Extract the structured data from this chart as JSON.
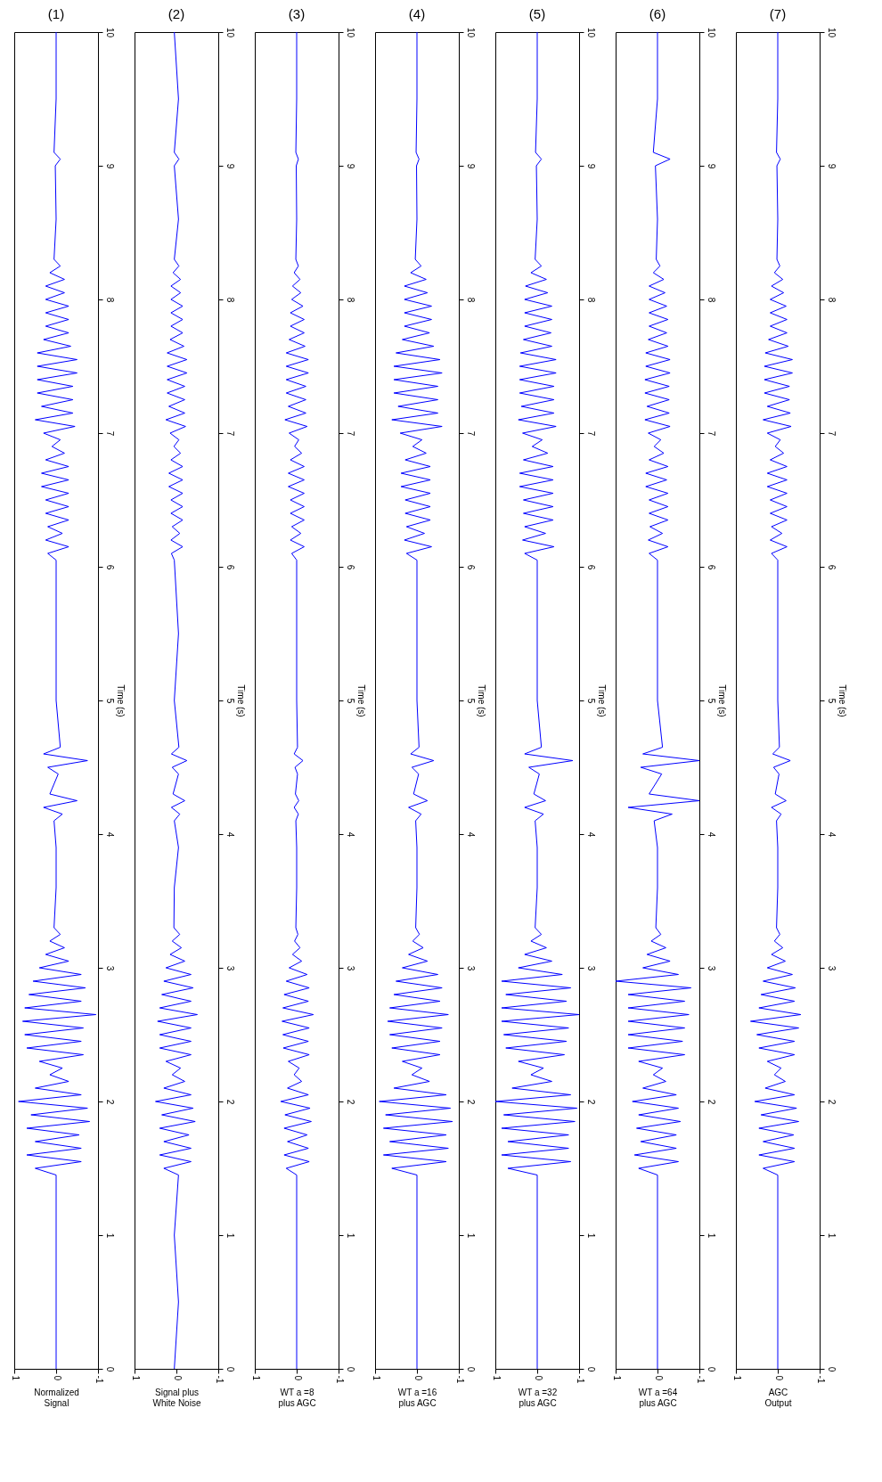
{
  "chart_data": [
    {
      "type": "line",
      "orientation": "horizontal",
      "title": "(1)",
      "ylabel": "Time (s)",
      "xlabel": "Normalized\nSignal",
      "color": "#0000ff",
      "ylim": [
        0,
        10
      ],
      "yticks": [
        0,
        1,
        2,
        3,
        4,
        5,
        6,
        7,
        8,
        9,
        10
      ],
      "xlim": [
        1,
        -1
      ],
      "xticks": [
        1,
        0,
        -1
      ],
      "x": [
        0,
        0.5,
        1,
        1.45,
        1.5,
        1.55,
        1.6,
        1.65,
        1.7,
        1.75,
        1.8,
        1.85,
        1.9,
        1.95,
        2,
        2.05,
        2.1,
        2.15,
        2.2,
        2.25,
        2.3,
        2.35,
        2.4,
        2.45,
        2.5,
        2.55,
        2.6,
        2.65,
        2.7,
        2.75,
        2.8,
        2.85,
        2.9,
        2.95,
        3,
        3.05,
        3.1,
        3.15,
        3.2,
        3.25,
        3.3,
        3.6,
        3.9,
        4.1,
        4.15,
        4.2,
        4.25,
        4.3,
        4.45,
        4.5,
        4.55,
        4.6,
        4.65,
        5,
        5.5,
        6.05,
        6.1,
        6.15,
        6.2,
        6.25,
        6.3,
        6.35,
        6.4,
        6.45,
        6.5,
        6.55,
        6.6,
        6.65,
        6.7,
        6.75,
        6.8,
        6.85,
        6.9,
        6.95,
        7,
        7.05,
        7.1,
        7.15,
        7.2,
        7.25,
        7.3,
        7.35,
        7.4,
        7.45,
        7.5,
        7.55,
        7.6,
        7.65,
        7.7,
        7.75,
        7.8,
        7.85,
        7.9,
        7.95,
        8,
        8.05,
        8.1,
        8.15,
        8.2,
        8.25,
        8.3,
        8.6,
        9,
        9.05,
        9.1,
        9.5,
        10
      ],
      "values": [
        0,
        0,
        0,
        0,
        0.5,
        -0.6,
        0.7,
        -0.6,
        0.5,
        -0.55,
        0.7,
        -0.8,
        0.6,
        -0.75,
        0.9,
        -0.6,
        0.5,
        -0.3,
        0.15,
        -0.15,
        0.4,
        -0.65,
        0.7,
        -0.6,
        0.75,
        -0.65,
        0.8,
        -0.95,
        0.75,
        -0.6,
        0.65,
        -0.7,
        0.55,
        -0.6,
        0.4,
        -0.3,
        0.25,
        -0.2,
        0.15,
        -0.1,
        0.05,
        0,
        0,
        0.05,
        -0.15,
        0.3,
        -0.5,
        0.15,
        -0.05,
        0.2,
        -0.75,
        0.3,
        -0.1,
        0,
        0,
        0,
        0.2,
        -0.3,
        0.25,
        -0.15,
        0.2,
        -0.3,
        0.25,
        -0.3,
        0.25,
        -0.3,
        0.35,
        -0.3,
        0.35,
        -0.3,
        0.25,
        -0.2,
        0.1,
        -0.1,
        0.3,
        -0.45,
        0.5,
        -0.4,
        0.35,
        -0.4,
        0.45,
        -0.4,
        0.45,
        -0.5,
        0.45,
        -0.5,
        0.45,
        -0.35,
        0.3,
        -0.3,
        0.25,
        -0.3,
        0.25,
        -0.3,
        0.25,
        -0.2,
        0.25,
        -0.2,
        0.15,
        -0.1,
        0.05,
        0,
        0.02,
        -0.1,
        0.05,
        0,
        0
      ]
    },
    {
      "type": "line",
      "orientation": "horizontal",
      "title": "(2)",
      "ylabel": "Time (s)",
      "xlabel": "Signal plus\nWhite Noise",
      "color": "#0000ff",
      "ylim": [
        0,
        10
      ],
      "yticks": [
        0,
        1,
        2,
        3,
        4,
        5,
        6,
        7,
        8,
        9,
        10
      ],
      "xlim": [
        1,
        -1
      ],
      "xticks": [
        1,
        0,
        -1
      ],
      "x": [
        0,
        0.5,
        1,
        1.45,
        1.5,
        1.55,
        1.6,
        1.65,
        1.7,
        1.75,
        1.8,
        1.85,
        1.9,
        1.95,
        2,
        2.05,
        2.1,
        2.15,
        2.2,
        2.25,
        2.3,
        2.35,
        2.4,
        2.45,
        2.5,
        2.55,
        2.6,
        2.65,
        2.7,
        2.75,
        2.8,
        2.85,
        2.9,
        2.95,
        3,
        3.05,
        3.1,
        3.15,
        3.2,
        3.25,
        3.3,
        3.6,
        3.9,
        4.1,
        4.15,
        4.2,
        4.25,
        4.3,
        4.45,
        4.5,
        4.55,
        4.6,
        4.65,
        5,
        5.5,
        6.05,
        6.1,
        6.15,
        6.2,
        6.25,
        6.3,
        6.35,
        6.4,
        6.45,
        6.5,
        6.55,
        6.6,
        6.65,
        6.7,
        6.75,
        6.8,
        6.85,
        6.9,
        6.95,
        7,
        7.05,
        7.1,
        7.15,
        7.2,
        7.25,
        7.3,
        7.35,
        7.4,
        7.45,
        7.5,
        7.55,
        7.6,
        7.65,
        7.7,
        7.75,
        7.8,
        7.85,
        7.9,
        7.95,
        8,
        8.05,
        8.1,
        8.15,
        8.2,
        8.25,
        8.3,
        8.6,
        9,
        9.05,
        9.1,
        9.5,
        10
      ],
      "values": [
        0.05,
        -0.05,
        0.05,
        -0.05,
        0.3,
        -0.35,
        0.4,
        -0.35,
        0.3,
        -0.3,
        0.4,
        -0.45,
        0.35,
        -0.4,
        0.5,
        -0.35,
        0.3,
        -0.2,
        0.1,
        -0.1,
        0.25,
        -0.35,
        0.4,
        -0.35,
        0.4,
        -0.35,
        0.45,
        -0.5,
        0.4,
        -0.35,
        0.35,
        -0.4,
        0.3,
        -0.35,
        0.25,
        -0.2,
        0.15,
        -0.12,
        0.1,
        -0.08,
        0.06,
        0.05,
        -0.05,
        0.05,
        -0.08,
        0.12,
        -0.2,
        0.08,
        -0.05,
        0.1,
        -0.25,
        0.12,
        -0.06,
        0.05,
        -0.05,
        0.05,
        0.12,
        -0.15,
        0.13,
        -0.08,
        0.1,
        -0.15,
        0.13,
        -0.15,
        0.13,
        -0.15,
        0.18,
        -0.15,
        0.18,
        -0.15,
        0.13,
        -0.1,
        0.06,
        -0.06,
        0.15,
        -0.22,
        0.25,
        -0.2,
        0.18,
        -0.2,
        0.22,
        -0.2,
        0.22,
        -0.25,
        0.22,
        -0.25,
        0.22,
        -0.18,
        0.15,
        -0.15,
        0.13,
        -0.15,
        0.13,
        -0.15,
        0.13,
        -0.1,
        0.13,
        -0.1,
        0.08,
        -0.06,
        0.05,
        -0.05,
        0.05,
        -0.06,
        0.05,
        -0.05,
        0.05
      ]
    },
    {
      "type": "line",
      "orientation": "horizontal",
      "title": "(3)",
      "ylabel": "Time (s)",
      "xlabel": "WT a =8\nplus AGC",
      "color": "#0000ff",
      "ylim": [
        0,
        10
      ],
      "yticks": [
        0,
        1,
        2,
        3,
        4,
        5,
        6,
        7,
        8,
        9,
        10
      ],
      "xlim": [
        1,
        -1
      ],
      "xticks": [
        1,
        0,
        -1
      ],
      "x": [
        0,
        0.5,
        1,
        1.45,
        1.5,
        1.55,
        1.6,
        1.65,
        1.7,
        1.75,
        1.8,
        1.85,
        1.9,
        1.95,
        2,
        2.05,
        2.1,
        2.15,
        2.2,
        2.25,
        2.3,
        2.35,
        2.4,
        2.45,
        2.5,
        2.55,
        2.6,
        2.65,
        2.7,
        2.75,
        2.8,
        2.85,
        2.9,
        2.95,
        3,
        3.05,
        3.1,
        3.15,
        3.2,
        3.25,
        3.3,
        3.6,
        3.9,
        4.1,
        4.15,
        4.2,
        4.25,
        4.3,
        4.45,
        4.5,
        4.55,
        4.6,
        4.65,
        5,
        5.5,
        6.05,
        6.1,
        6.15,
        6.2,
        6.25,
        6.3,
        6.35,
        6.4,
        6.45,
        6.5,
        6.55,
        6.6,
        6.65,
        6.7,
        6.75,
        6.8,
        6.85,
        6.9,
        6.95,
        7,
        7.05,
        7.1,
        7.15,
        7.2,
        7.25,
        7.3,
        7.35,
        7.4,
        7.45,
        7.5,
        7.55,
        7.6,
        7.65,
        7.7,
        7.75,
        7.8,
        7.85,
        7.9,
        7.95,
        8,
        8.05,
        8.1,
        8.15,
        8.2,
        8.25,
        8.3,
        8.6,
        9,
        9.05,
        9.1,
        9.5,
        10
      ],
      "values": [
        0,
        0,
        0,
        0,
        0.25,
        -0.3,
        0.3,
        -0.28,
        0.22,
        -0.25,
        0.3,
        -0.35,
        0.28,
        -0.32,
        0.38,
        -0.28,
        0.22,
        -0.12,
        0.06,
        -0.06,
        0.2,
        -0.3,
        0.32,
        -0.28,
        0.33,
        -0.3,
        0.35,
        -0.4,
        0.33,
        -0.28,
        0.3,
        -0.3,
        0.25,
        -0.25,
        0.18,
        -0.12,
        0.1,
        -0.08,
        0.05,
        -0.03,
        0.02,
        0,
        0,
        0.02,
        -0.04,
        0.06,
        -0.05,
        0.03,
        -0.02,
        0.04,
        -0.15,
        0.06,
        -0.02,
        0,
        0,
        0,
        0.12,
        -0.18,
        0.15,
        -0.1,
        0.12,
        -0.18,
        0.15,
        -0.18,
        0.15,
        -0.18,
        0.2,
        -0.18,
        0.2,
        -0.18,
        0.15,
        -0.12,
        0.05,
        -0.05,
        0.18,
        -0.25,
        0.28,
        -0.22,
        0.2,
        -0.22,
        0.25,
        -0.22,
        0.25,
        -0.28,
        0.25,
        -0.28,
        0.25,
        -0.2,
        0.18,
        -0.18,
        0.15,
        -0.18,
        0.15,
        -0.15,
        0.12,
        -0.1,
        0.1,
        -0.08,
        0.06,
        -0.04,
        0.02,
        0,
        0.01,
        -0.04,
        0.02,
        0,
        0
      ]
    },
    {
      "type": "line",
      "orientation": "horizontal",
      "title": "(4)",
      "ylabel": "Time (s)",
      "xlabel": "WT a =16\nplus AGC",
      "color": "#0000ff",
      "ylim": [
        0,
        10
      ],
      "yticks": [
        0,
        1,
        2,
        3,
        4,
        5,
        6,
        7,
        8,
        9,
        10
      ],
      "xlim": [
        1,
        -1
      ],
      "xticks": [
        1,
        0,
        -1
      ],
      "x": [
        0,
        0.5,
        1,
        1.45,
        1.5,
        1.55,
        1.6,
        1.65,
        1.7,
        1.75,
        1.8,
        1.85,
        1.9,
        1.95,
        2,
        2.05,
        2.1,
        2.15,
        2.2,
        2.25,
        2.3,
        2.35,
        2.4,
        2.45,
        2.5,
        2.55,
        2.6,
        2.65,
        2.7,
        2.75,
        2.8,
        2.85,
        2.9,
        2.95,
        3,
        3.05,
        3.1,
        3.15,
        3.2,
        3.25,
        3.3,
        3.6,
        3.9,
        4.1,
        4.15,
        4.2,
        4.25,
        4.3,
        4.45,
        4.5,
        4.55,
        4.6,
        4.65,
        5,
        5.5,
        6.05,
        6.1,
        6.15,
        6.2,
        6.25,
        6.3,
        6.35,
        6.4,
        6.45,
        6.5,
        6.55,
        6.6,
        6.65,
        6.7,
        6.75,
        6.8,
        6.85,
        6.9,
        6.95,
        7,
        7.05,
        7.1,
        7.15,
        7.2,
        7.25,
        7.3,
        7.35,
        7.4,
        7.45,
        7.5,
        7.55,
        7.6,
        7.65,
        7.7,
        7.75,
        7.8,
        7.85,
        7.9,
        7.95,
        8,
        8.05,
        8.1,
        8.15,
        8.2,
        8.25,
        8.3,
        8.6,
        9,
        9.05,
        9.1,
        9.5,
        10
      ],
      "values": [
        0,
        0,
        0,
        0,
        0.6,
        -0.7,
        0.8,
        -0.75,
        0.65,
        -0.7,
        0.8,
        -0.85,
        0.75,
        -0.8,
        0.9,
        -0.7,
        0.55,
        -0.3,
        0.12,
        -0.12,
        0.35,
        -0.55,
        0.6,
        -0.55,
        0.65,
        -0.6,
        0.7,
        -0.75,
        0.65,
        -0.55,
        0.55,
        -0.6,
        0.5,
        -0.5,
        0.35,
        -0.25,
        0.2,
        -0.15,
        0.1,
        -0.06,
        0.03,
        0,
        0,
        0.03,
        -0.1,
        0.2,
        -0.25,
        0.08,
        -0.04,
        0.12,
        -0.4,
        0.15,
        -0.05,
        0,
        0,
        0,
        0.25,
        -0.35,
        0.3,
        -0.18,
        0.25,
        -0.32,
        0.28,
        -0.32,
        0.28,
        -0.32,
        0.38,
        -0.32,
        0.38,
        -0.32,
        0.28,
        -0.22,
        0.1,
        -0.12,
        0.4,
        -0.6,
        0.6,
        -0.5,
        0.45,
        -0.5,
        0.55,
        -0.5,
        0.55,
        -0.6,
        0.55,
        -0.55,
        0.5,
        -0.4,
        0.35,
        -0.3,
        0.3,
        -0.35,
        0.3,
        -0.35,
        0.3,
        -0.25,
        0.3,
        -0.22,
        0.15,
        -0.1,
        0.04,
        0,
        0.01,
        -0.05,
        0.02,
        0,
        0
      ]
    },
    {
      "type": "line",
      "orientation": "horizontal",
      "title": "(5)",
      "ylabel": "Time (s)",
      "xlabel": "WT a =32\nplus AGC",
      "color": "#0000ff",
      "ylim": [
        0,
        10
      ],
      "yticks": [
        0,
        1,
        2,
        3,
        4,
        5,
        6,
        7,
        8,
        9,
        10
      ],
      "xlim": [
        1,
        -1
      ],
      "xticks": [
        1,
        0,
        -1
      ],
      "x": [
        0,
        0.5,
        1,
        1.45,
        1.5,
        1.55,
        1.6,
        1.65,
        1.7,
        1.75,
        1.8,
        1.85,
        1.9,
        1.95,
        2,
        2.05,
        2.1,
        2.15,
        2.2,
        2.25,
        2.3,
        2.35,
        2.4,
        2.45,
        2.5,
        2.55,
        2.6,
        2.65,
        2.7,
        2.75,
        2.8,
        2.85,
        2.9,
        2.95,
        3,
        3.05,
        3.1,
        3.15,
        3.2,
        3.25,
        3.3,
        3.6,
        3.9,
        4.1,
        4.15,
        4.2,
        4.25,
        4.3,
        4.45,
        4.5,
        4.55,
        4.6,
        4.65,
        5,
        5.5,
        6.05,
        6.1,
        6.15,
        6.2,
        6.25,
        6.3,
        6.35,
        6.4,
        6.45,
        6.5,
        6.55,
        6.6,
        6.65,
        6.7,
        6.75,
        6.8,
        6.85,
        6.9,
        6.95,
        7,
        7.05,
        7.1,
        7.15,
        7.2,
        7.25,
        7.3,
        7.35,
        7.4,
        7.45,
        7.5,
        7.55,
        7.6,
        7.65,
        7.7,
        7.75,
        7.8,
        7.85,
        7.9,
        7.95,
        8,
        8.05,
        8.1,
        8.15,
        8.2,
        8.25,
        8.3,
        8.6,
        9,
        9.05,
        9.1,
        9.5,
        10
      ],
      "values": [
        0,
        0,
        0,
        0,
        0.7,
        -0.8,
        0.85,
        -0.75,
        0.7,
        -0.75,
        0.85,
        -0.9,
        0.8,
        -0.95,
        1,
        -0.8,
        0.6,
        -0.35,
        0.15,
        -0.15,
        0.45,
        -0.65,
        0.75,
        -0.7,
        0.8,
        -0.75,
        0.85,
        -1,
        0.85,
        -0.7,
        0.75,
        -0.8,
        0.85,
        -0.6,
        0.45,
        -0.35,
        0.3,
        -0.22,
        0.15,
        -0.1,
        0.05,
        0,
        0,
        0.05,
        -0.15,
        0.3,
        -0.2,
        0.08,
        -0.05,
        0.2,
        -0.85,
        0.3,
        -0.1,
        0,
        0,
        0,
        0.3,
        -0.4,
        0.35,
        -0.2,
        0.3,
        -0.38,
        0.33,
        -0.38,
        0.33,
        -0.38,
        0.42,
        -0.38,
        0.42,
        -0.38,
        0.33,
        -0.25,
        0.12,
        -0.12,
        0.35,
        -0.45,
        0.45,
        -0.4,
        0.38,
        -0.4,
        0.42,
        -0.4,
        0.42,
        -0.45,
        0.42,
        -0.45,
        0.4,
        -0.35,
        0.33,
        -0.33,
        0.3,
        -0.35,
        0.3,
        -0.35,
        0.3,
        -0.25,
        0.28,
        -0.22,
        0.15,
        -0.1,
        0.05,
        0,
        0.02,
        -0.1,
        0.04,
        0,
        0
      ]
    },
    {
      "type": "line",
      "orientation": "horizontal",
      "title": "(6)",
      "ylabel": "Time (s)",
      "xlabel": "WT a =64\nplus AGC",
      "color": "#0000ff",
      "ylim": [
        0,
        10
      ],
      "yticks": [
        0,
        1,
        2,
        3,
        4,
        5,
        6,
        7,
        8,
        9,
        10
      ],
      "xlim": [
        1,
        -1
      ],
      "xticks": [
        1,
        0,
        -1
      ],
      "x": [
        0,
        0.5,
        1,
        1.45,
        1.5,
        1.55,
        1.6,
        1.65,
        1.7,
        1.75,
        1.8,
        1.85,
        1.9,
        1.95,
        2,
        2.05,
        2.1,
        2.15,
        2.2,
        2.25,
        2.3,
        2.35,
        2.4,
        2.45,
        2.5,
        2.55,
        2.6,
        2.65,
        2.7,
        2.75,
        2.8,
        2.85,
        2.9,
        2.95,
        3,
        3.05,
        3.1,
        3.15,
        3.2,
        3.25,
        3.3,
        3.6,
        3.9,
        4.1,
        4.15,
        4.2,
        4.25,
        4.3,
        4.45,
        4.5,
        4.55,
        4.6,
        4.65,
        5,
        5.5,
        6.05,
        6.1,
        6.15,
        6.2,
        6.25,
        6.3,
        6.35,
        6.4,
        6.45,
        6.5,
        6.55,
        6.6,
        6.65,
        6.7,
        6.75,
        6.8,
        6.85,
        6.9,
        6.95,
        7,
        7.05,
        7.1,
        7.15,
        7.2,
        7.25,
        7.3,
        7.35,
        7.4,
        7.45,
        7.5,
        7.55,
        7.6,
        7.65,
        7.7,
        7.75,
        7.8,
        7.85,
        7.9,
        7.95,
        8,
        8.05,
        8.1,
        8.15,
        8.2,
        8.25,
        8.3,
        8.6,
        9,
        9.05,
        9.1,
        9.5,
        10
      ],
      "values": [
        0,
        0,
        0,
        0,
        0.45,
        -0.5,
        0.55,
        -0.45,
        0.4,
        -0.45,
        0.5,
        -0.55,
        0.45,
        -0.5,
        0.6,
        -0.45,
        0.35,
        -0.2,
        0.1,
        -0.12,
        0.45,
        -0.65,
        0.7,
        -0.6,
        0.7,
        -0.65,
        0.7,
        -0.75,
        0.7,
        -0.65,
        0.7,
        -0.8,
        1,
        -0.5,
        0.35,
        -0.3,
        0.25,
        -0.2,
        0.15,
        -0.08,
        0.04,
        0,
        0,
        0.08,
        -0.35,
        0.7,
        -1,
        0.2,
        -0.1,
        0.4,
        -1,
        0.35,
        -0.12,
        0,
        0,
        0,
        0.2,
        -0.25,
        0.22,
        -0.12,
        0.18,
        -0.25,
        0.2,
        -0.25,
        0.2,
        -0.25,
        0.28,
        -0.22,
        0.28,
        -0.25,
        0.2,
        -0.15,
        0.08,
        -0.08,
        0.22,
        -0.3,
        0.3,
        -0.28,
        0.25,
        -0.28,
        0.3,
        -0.28,
        0.3,
        -0.3,
        0.28,
        -0.3,
        0.28,
        -0.25,
        0.22,
        -0.22,
        0.2,
        -0.25,
        0.2,
        -0.22,
        0.2,
        -0.18,
        0.2,
        -0.15,
        0.1,
        -0.06,
        0.03,
        0,
        0.05,
        -0.3,
        0.1,
        0,
        0
      ]
    },
    {
      "type": "line",
      "orientation": "horizontal",
      "title": "(7)",
      "ylabel": "Time (s)",
      "xlabel": "AGC\nOutput",
      "color": "#0000ff",
      "ylim": [
        0,
        10
      ],
      "yticks": [
        0,
        1,
        2,
        3,
        4,
        5,
        6,
        7,
        8,
        9,
        10
      ],
      "xlim": [
        1,
        -1
      ],
      "xticks": [
        1,
        0,
        -1
      ],
      "x": [
        0,
        0.5,
        1,
        1.45,
        1.5,
        1.55,
        1.6,
        1.65,
        1.7,
        1.75,
        1.8,
        1.85,
        1.9,
        1.95,
        2,
        2.05,
        2.1,
        2.15,
        2.2,
        2.25,
        2.3,
        2.35,
        2.4,
        2.45,
        2.5,
        2.55,
        2.6,
        2.65,
        2.7,
        2.75,
        2.8,
        2.85,
        2.9,
        2.95,
        3,
        3.05,
        3.1,
        3.15,
        3.2,
        3.25,
        3.3,
        3.6,
        3.9,
        4.1,
        4.15,
        4.2,
        4.25,
        4.3,
        4.45,
        4.5,
        4.55,
        4.6,
        4.65,
        5,
        5.5,
        6.05,
        6.1,
        6.15,
        6.2,
        6.25,
        6.3,
        6.35,
        6.4,
        6.45,
        6.5,
        6.55,
        6.6,
        6.65,
        6.7,
        6.75,
        6.8,
        6.85,
        6.9,
        6.95,
        7,
        7.05,
        7.1,
        7.15,
        7.2,
        7.25,
        7.3,
        7.35,
        7.4,
        7.45,
        7.5,
        7.55,
        7.6,
        7.65,
        7.7,
        7.75,
        7.8,
        7.85,
        7.9,
        7.95,
        8,
        8.05,
        8.1,
        8.15,
        8.2,
        8.25,
        8.3,
        8.6,
        9,
        9.05,
        9.1,
        9.5,
        10
      ],
      "values": [
        0,
        0,
        0,
        0,
        0.35,
        -0.4,
        0.45,
        -0.4,
        0.35,
        -0.38,
        0.45,
        -0.5,
        0.4,
        -0.45,
        0.55,
        -0.4,
        0.3,
        -0.18,
        0.08,
        -0.08,
        0.25,
        -0.4,
        0.45,
        -0.4,
        0.5,
        -0.5,
        0.65,
        -0.55,
        0.45,
        -0.4,
        0.4,
        -0.42,
        0.35,
        -0.35,
        0.25,
        -0.18,
        0.15,
        -0.12,
        0.08,
        -0.05,
        0.03,
        0,
        0,
        0.03,
        -0.08,
        0.15,
        -0.2,
        0.06,
        -0.03,
        0.1,
        -0.3,
        0.12,
        -0.04,
        0,
        0,
        0,
        0.15,
        -0.22,
        0.18,
        -0.1,
        0.15,
        -0.22,
        0.18,
        -0.22,
        0.18,
        -0.22,
        0.25,
        -0.22,
        0.25,
        -0.22,
        0.18,
        -0.14,
        0.06,
        -0.06,
        0.25,
        -0.32,
        0.35,
        -0.3,
        0.25,
        -0.28,
        0.32,
        -0.28,
        0.32,
        -0.35,
        0.32,
        -0.35,
        0.3,
        -0.25,
        0.22,
        -0.22,
        0.18,
        -0.22,
        0.18,
        -0.2,
        0.18,
        -0.14,
        0.15,
        -0.12,
        0.08,
        -0.05,
        0.02,
        0,
        0.02,
        -0.06,
        0.03,
        0,
        0
      ]
    }
  ]
}
